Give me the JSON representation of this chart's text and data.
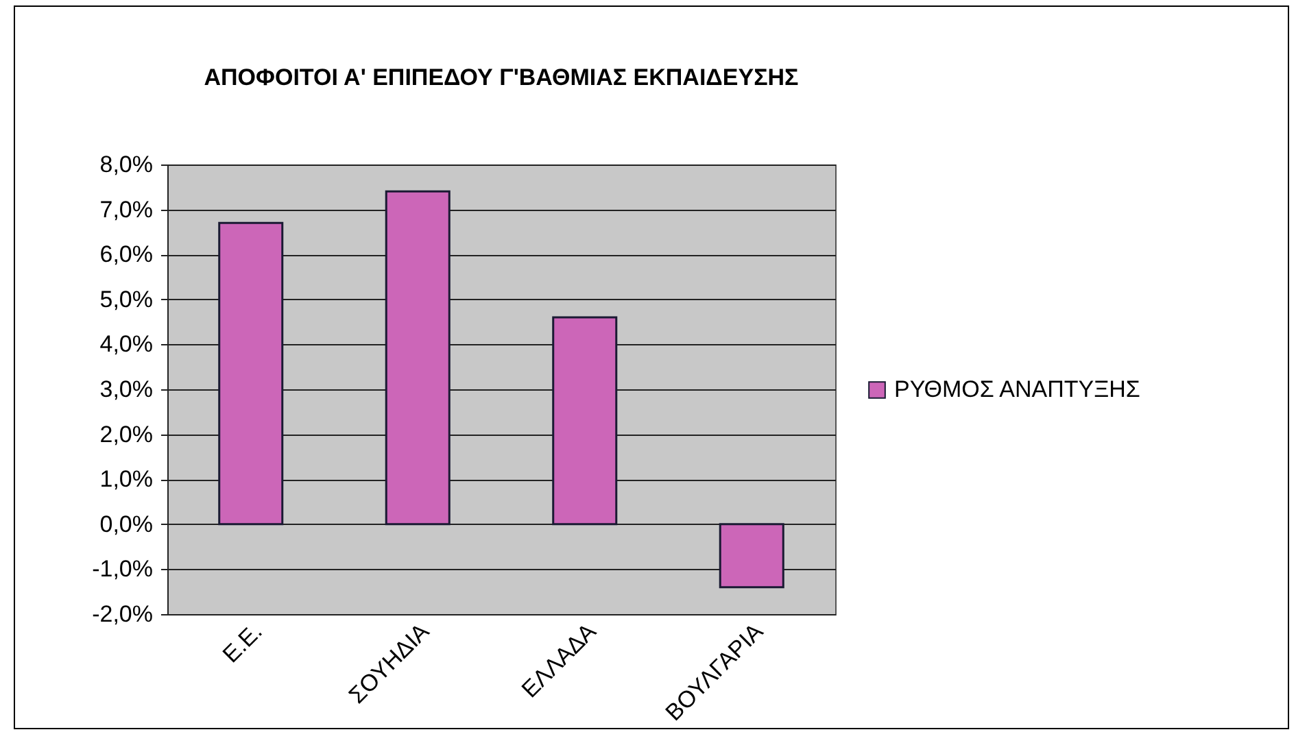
{
  "chart_data": {
    "type": "bar",
    "title": "ΑΠΟΦΟΙΤΟΙ Α' ΕΠΙΠΕΔΟΥ Γ'ΒΑΘΜΙΑΣ ΕΚΠΑΙΔΕΥΣΗΣ",
    "categories": [
      "Ε.Ε.",
      "ΣΟΥΗΔΙΑ",
      "ΕΛΛΑΔΑ",
      "ΒΟΥΛΓΑΡΙΑ"
    ],
    "series": [
      {
        "name": "ΡΥΘΜΟΣ ΑΝΑΠΤΥΞΗΣ",
        "color": "#cc66b8",
        "values": [
          6.7,
          7.4,
          4.6,
          -1.4
        ]
      }
    ],
    "ylim": [
      -2,
      8
    ],
    "yticks": [
      {
        "value": -2,
        "label": "-2,0%"
      },
      {
        "value": -1,
        "label": "-1,0%"
      },
      {
        "value": 0,
        "label": "0,0%"
      },
      {
        "value": 1,
        "label": "1,0%"
      },
      {
        "value": 2,
        "label": "2,0%"
      },
      {
        "value": 3,
        "label": "3,0%"
      },
      {
        "value": 4,
        "label": "4,0%"
      },
      {
        "value": 5,
        "label": "5,0%"
      },
      {
        "value": 6,
        "label": "6,0%"
      },
      {
        "value": 7,
        "label": "7,0%"
      },
      {
        "value": 8,
        "label": "8,0%"
      }
    ],
    "grid": "y",
    "legend": "right"
  }
}
